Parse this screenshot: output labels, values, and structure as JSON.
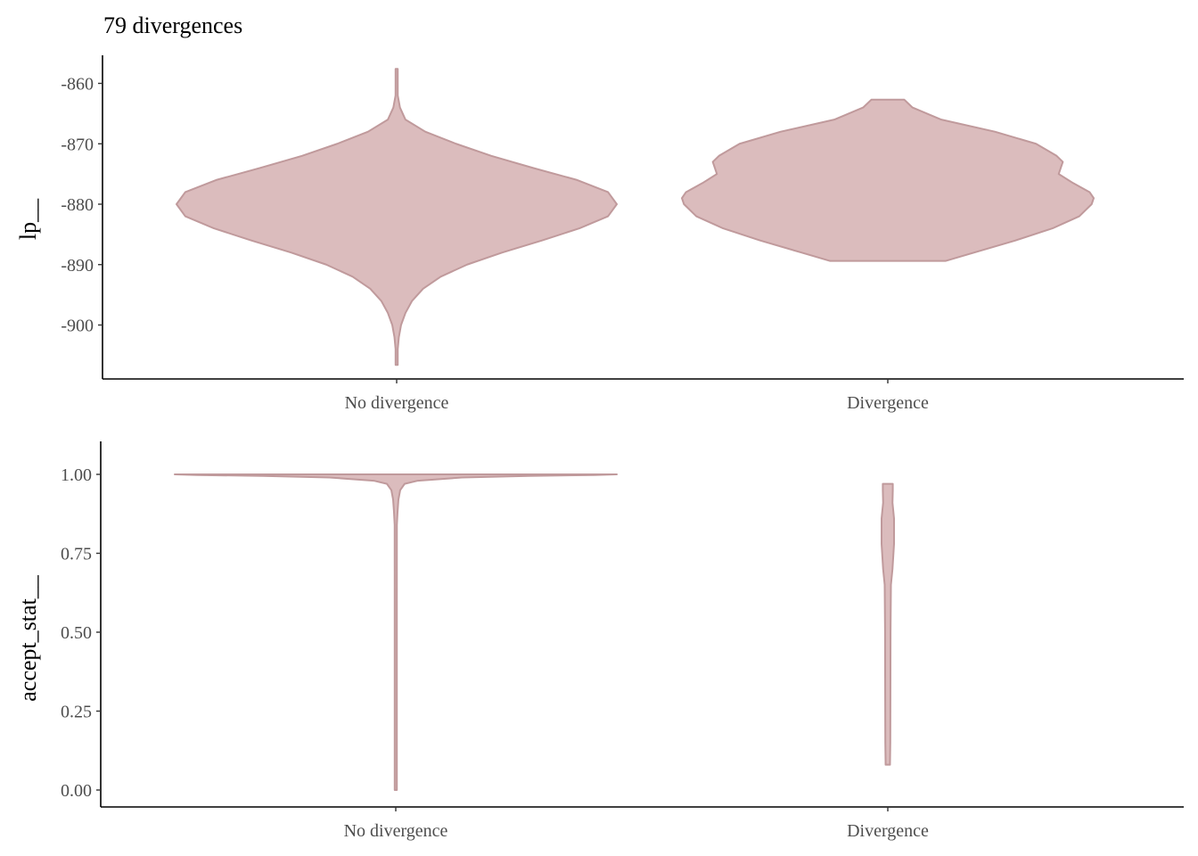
{
  "chart_data": [
    {
      "type": "violin",
      "title": "79 divergences",
      "xlabel": "",
      "ylabel": "lp__",
      "categories": [
        "No divergence",
        "Divergence"
      ],
      "ylim": [
        -906.6,
        -857.6
      ],
      "yticks": [
        -860,
        -870,
        -880,
        -890,
        -900
      ],
      "ytick_labels": [
        "-860",
        "-870",
        "-880",
        "-890",
        "-900"
      ],
      "grid": false,
      "fill_color": "#dbbcbd",
      "line_color": "#c09a9c",
      "violins": [
        {
          "category": "No divergence",
          "y_min": -906.6,
          "y_max": -857.6,
          "density": [
            [
              -906.6,
              0.0
            ],
            [
              -904.0,
              0.0
            ],
            [
              -902.0,
              0.01
            ],
            [
              -900.0,
              0.02
            ],
            [
              -898.0,
              0.04
            ],
            [
              -896.0,
              0.07
            ],
            [
              -894.0,
              0.12
            ],
            [
              -892.0,
              0.2
            ],
            [
              -890.0,
              0.32
            ],
            [
              -888.0,
              0.48
            ],
            [
              -886.0,
              0.66
            ],
            [
              -884.0,
              0.83
            ],
            [
              -882.0,
              0.96
            ],
            [
              -880.0,
              1.0
            ],
            [
              -878.0,
              0.96
            ],
            [
              -876.0,
              0.82
            ],
            [
              -874.0,
              0.62
            ],
            [
              -872.0,
              0.43
            ],
            [
              -870.0,
              0.27
            ],
            [
              -868.0,
              0.13
            ],
            [
              -866.0,
              0.04
            ],
            [
              -864.0,
              0.015
            ],
            [
              -862.0,
              0.005
            ],
            [
              -860.0,
              0.002
            ],
            [
              -857.6,
              0.0
            ]
          ]
        },
        {
          "category": "Divergence",
          "y_min": -889.4,
          "y_max": -862.7,
          "density": [
            [
              -889.4,
              0.28
            ],
            [
              -888.0,
              0.42
            ],
            [
              -886.0,
              0.62
            ],
            [
              -884.0,
              0.8
            ],
            [
              -882.0,
              0.93
            ],
            [
              -880.0,
              0.99
            ],
            [
              -879.0,
              1.0
            ],
            [
              -878.0,
              0.98
            ],
            [
              -876.5,
              0.9
            ],
            [
              -875.0,
              0.83
            ],
            [
              -874.0,
              0.84
            ],
            [
              -873.0,
              0.85
            ],
            [
              -872.0,
              0.82
            ],
            [
              -870.0,
              0.72
            ],
            [
              -868.0,
              0.52
            ],
            [
              -866.0,
              0.26
            ],
            [
              -864.0,
              0.12
            ],
            [
              -862.7,
              0.08
            ]
          ]
        }
      ]
    },
    {
      "type": "violin",
      "xlabel": "",
      "ylabel": "accept_stat__",
      "categories": [
        "No divergence",
        "Divergence"
      ],
      "ylim": [
        0.0,
        1.0
      ],
      "yticks": [
        1.0,
        0.75,
        0.5,
        0.25,
        0.0
      ],
      "ytick_labels": [
        "1.00",
        "0.75",
        "0.50",
        "0.25",
        "0.00"
      ],
      "grid": false,
      "fill_color": "#dbbcbd",
      "line_color": "#c09a9c",
      "violins": [
        {
          "category": "No divergence",
          "y_min": 0.0,
          "y_max": 1.0,
          "density": [
            [
              0.0,
              0.004
            ],
            [
              0.3,
              0.004
            ],
            [
              0.6,
              0.004
            ],
            [
              0.84,
              0.005
            ],
            [
              0.88,
              0.008
            ],
            [
              0.92,
              0.012
            ],
            [
              0.95,
              0.02
            ],
            [
              0.97,
              0.04
            ],
            [
              0.98,
              0.1
            ],
            [
              0.99,
              0.3
            ],
            [
              0.995,
              0.6
            ],
            [
              0.998,
              0.9
            ],
            [
              1.0,
              1.0
            ]
          ]
        },
        {
          "category": "Divergence",
          "y_min": 0.08,
          "y_max": 0.97,
          "density": [
            [
              0.08,
              0.35
            ],
            [
              0.15,
              0.4
            ],
            [
              0.3,
              0.42
            ],
            [
              0.5,
              0.44
            ],
            [
              0.65,
              0.5
            ],
            [
              0.7,
              0.75
            ],
            [
              0.78,
              1.0
            ],
            [
              0.86,
              1.0
            ],
            [
              0.91,
              0.75
            ],
            [
              0.95,
              0.8
            ],
            [
              0.97,
              0.8
            ]
          ]
        }
      ]
    }
  ]
}
